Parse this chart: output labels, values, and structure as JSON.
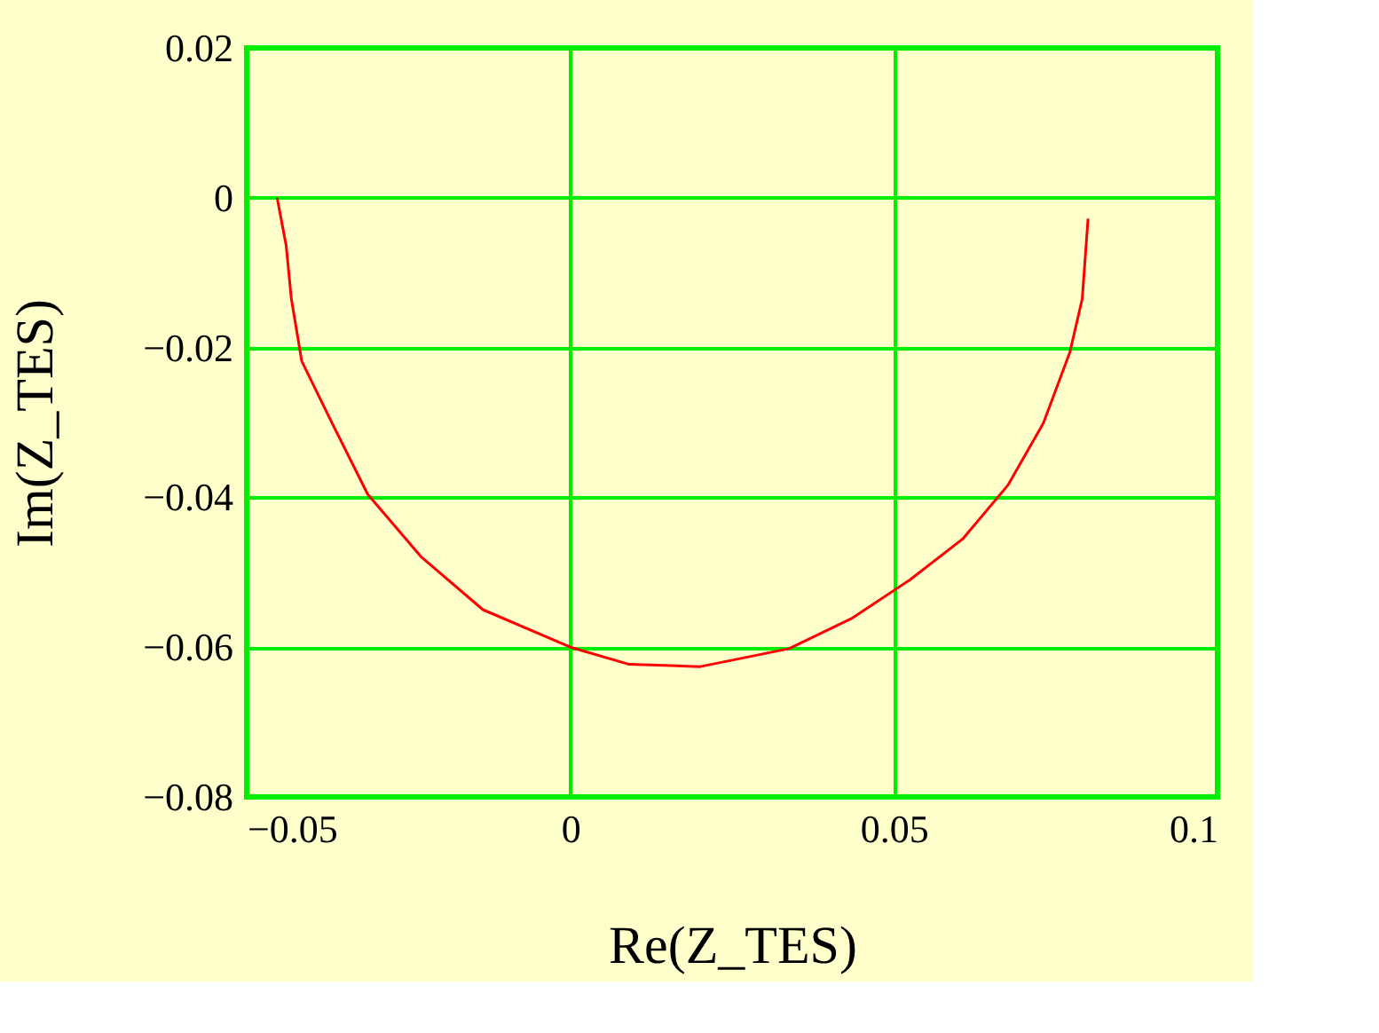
{
  "chart_data": {
    "type": "line",
    "xlabel": "Re(Z_TES)",
    "ylabel": "Im(Z_TES)",
    "xlim": [
      -0.05,
      0.1
    ],
    "ylim": [
      -0.08,
      0.02
    ],
    "xticks": [
      -0.05,
      0,
      0.05,
      0.1
    ],
    "yticks": [
      -0.08,
      -0.06,
      -0.04,
      -0.02,
      0,
      0.02
    ],
    "grid": true,
    "marker": "none",
    "line_style": "solid",
    "series": [
      {
        "color": "#ff0000",
        "x": [
          -0.0453,
          -0.0439,
          -0.0431,
          -0.0415,
          -0.0368,
          -0.0313,
          -0.0231,
          -0.0135,
          0,
          0.0091,
          0.0201,
          0.0338,
          0.0434,
          0.0525,
          0.0607,
          0.0676,
          0.0731,
          0.0772,
          0.0791,
          0.08
        ],
        "values": [
          0,
          -0.0064,
          -0.0135,
          -0.0218,
          -0.0301,
          -0.0396,
          -0.0479,
          -0.055,
          -0.06,
          -0.0623,
          -0.0626,
          -0.0602,
          -0.0562,
          -0.051,
          -0.0455,
          -0.0384,
          -0.0301,
          -0.0206,
          -0.0135,
          -0.0028
        ]
      }
    ]
  }
}
